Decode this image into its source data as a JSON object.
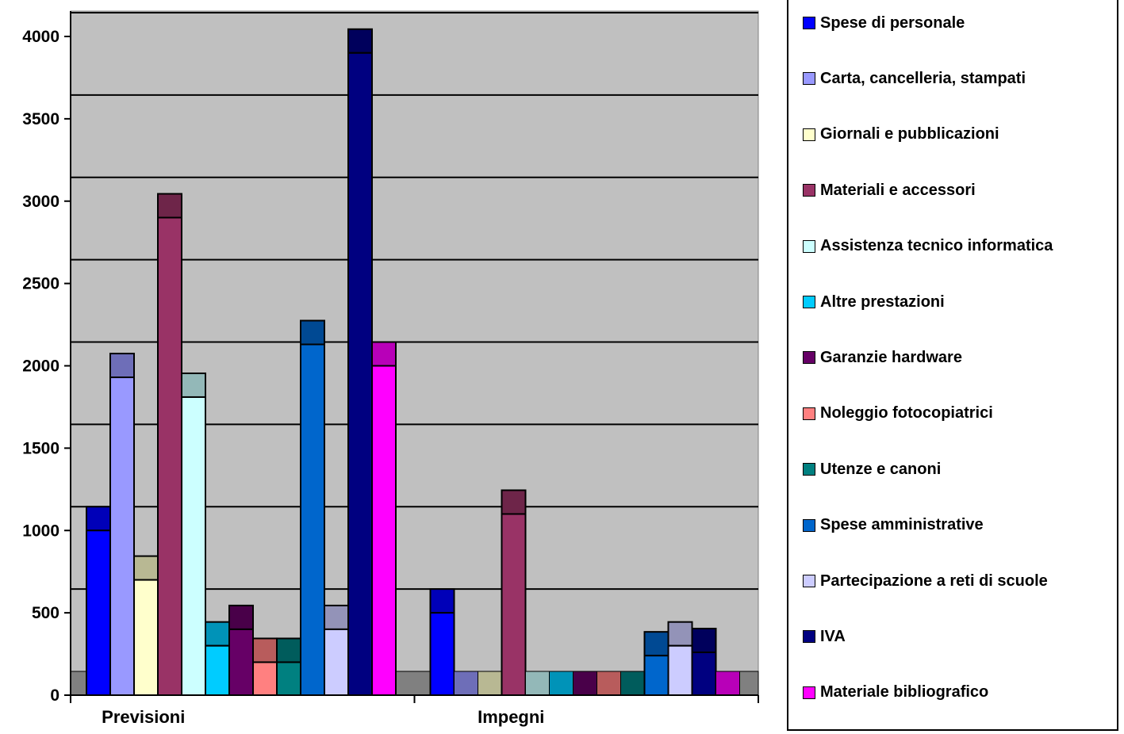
{
  "chart_data": {
    "type": "bar",
    "stacked_3d_style": true,
    "categories": [
      "Previsioni",
      "Impegni"
    ],
    "y_ticks": [
      "0",
      "500",
      "1000",
      "1500",
      "2000",
      "2500",
      "3000",
      "3500",
      "4000"
    ],
    "ylim": [
      0,
      4000
    ],
    "grid": true,
    "legend_position": "right",
    "series": [
      {
        "name": "Spese di personale",
        "color": "#0000ff",
        "values": [
          1000,
          500
        ]
      },
      {
        "name": "Carta, cancelleria, stampati",
        "color": "#9999ff",
        "values": [
          1930,
          0
        ]
      },
      {
        "name": "Giornali e pubblicazioni",
        "color": "#ffffcc",
        "values": [
          700,
          0
        ]
      },
      {
        "name": "Materiali e accessori",
        "color": "#993366",
        "values": [
          2900,
          1100
        ]
      },
      {
        "name": "Assistenza tecnico informatica",
        "color": "#ccffff",
        "values": [
          1810,
          0
        ]
      },
      {
        "name": "Altre prestazioni",
        "color": "#00ccff",
        "values": [
          300,
          0
        ]
      },
      {
        "name": "Garanzie hardware",
        "color": "#660066",
        "values": [
          400,
          0
        ]
      },
      {
        "name": "Noleggio  fotocopiatrici",
        "color": "#ff8080",
        "values": [
          200,
          0
        ]
      },
      {
        "name": "Utenze e canoni",
        "color": "#008080",
        "values": [
          200,
          0
        ]
      },
      {
        "name": "Spese amministrative",
        "color": "#0066cc",
        "values": [
          2130,
          240
        ]
      },
      {
        "name": "Partecipazione a reti di scuole",
        "color": "#ccccff",
        "values": [
          400,
          300
        ]
      },
      {
        "name": "IVA",
        "color": "#000080",
        "values": [
          3900,
          260
        ]
      },
      {
        "name": "Materiale bibliografico",
        "color": "#ff00ff",
        "values": [
          2000,
          0
        ]
      }
    ]
  }
}
